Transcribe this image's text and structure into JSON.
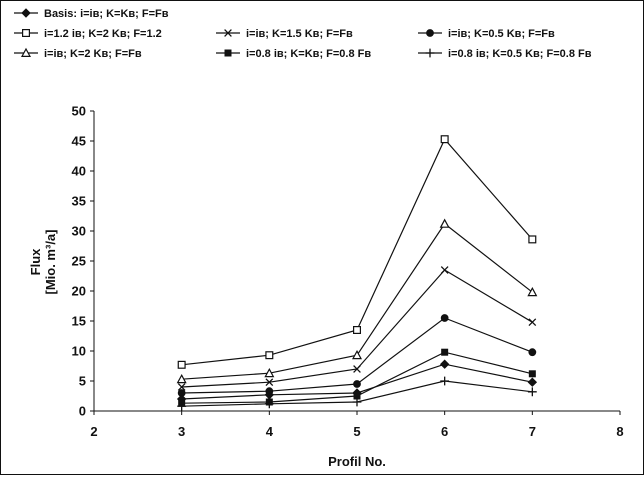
{
  "chart_data": {
    "type": "line",
    "xlabel": "Profil No.",
    "ylabel": "Flux",
    "ylabel_unit": "[Mio. m³/a]",
    "xlim": [
      2,
      8
    ],
    "ylim": [
      0,
      50
    ],
    "xticks": [
      2,
      3,
      4,
      5,
      6,
      7,
      8
    ],
    "yticks": [
      0,
      5,
      10,
      15,
      20,
      25,
      30,
      35,
      40,
      45,
      50
    ],
    "grid": false,
    "legend_position": "top",
    "x": [
      3,
      4,
      5,
      6,
      7
    ],
    "series": [
      {
        "name": "Basis: i=iв; K=Kв; F=Fв",
        "marker": "diamond-filled",
        "values": [
          2.0,
          2.7,
          3.0,
          7.8,
          4.8
        ]
      },
      {
        "name": "i=1.2 iв; K=2 Kв; F=1.2",
        "marker": "square-open",
        "values": [
          7.7,
          9.3,
          13.5,
          45.3,
          28.6
        ]
      },
      {
        "name": "i=iв; K=1.5 Kв; F=Fв",
        "marker": "x",
        "values": [
          4.0,
          4.8,
          7.0,
          23.5,
          14.8
        ]
      },
      {
        "name": "i=iв; K=0.5 Kв; F=Fв",
        "marker": "circle-filled",
        "values": [
          3.0,
          3.3,
          4.5,
          15.5,
          9.8
        ]
      },
      {
        "name": "i=iв; K=2 Kв; F=Fв",
        "marker": "triangle-open",
        "values": [
          5.3,
          6.3,
          9.3,
          31.2,
          19.8
        ]
      },
      {
        "name": "i=0.8 iв; K=Kв; F=0.8 Fв",
        "marker": "square-filled",
        "values": [
          1.3,
          1.5,
          2.5,
          9.8,
          6.2
        ]
      },
      {
        "name": "i=0.8 iв; K=0.5 Kв; F=0.8 Fв",
        "marker": "plus",
        "values": [
          0.8,
          1.2,
          1.5,
          5.0,
          3.2
        ]
      }
    ]
  }
}
